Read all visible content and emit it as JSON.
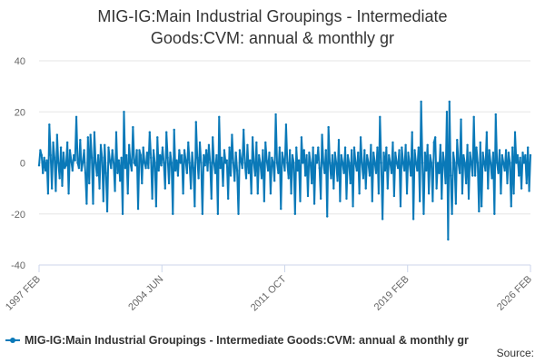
{
  "title_line1": "MIG-IG:Main Industrial Groupings - Intermediate",
  "title_line2": "Goods:CVM: annual & monthly gr",
  "source_label": "Source:",
  "colors": {
    "series": "#0a79b8",
    "grid": "#e6e6e6",
    "axis": "#ccd6eb"
  },
  "chart_data": {
    "type": "line",
    "title": "MIG-IG:Main Industrial Groupings - Intermediate Goods:CVM: annual & monthly gr",
    "xlabel": "",
    "ylabel": "",
    "ylim": [
      -40,
      40
    ],
    "yticks": [
      40,
      20,
      0,
      -20,
      -40
    ],
    "xlim": [
      "1997 FEB",
      "2026 FEB"
    ],
    "xticks": [
      "1997 FEB",
      "2004 JUN",
      "2011 OCT",
      "2019 FEB",
      "2026 FEB"
    ],
    "frequency": "monthly",
    "series": [
      {
        "name": "MIG-IG:Main Industrial Groupings - Intermediate Goods:CVM: annual & monthly gr",
        "start": "1997 FEB",
        "values": [
          -1,
          5,
          3,
          -4,
          2,
          -3,
          1,
          -12,
          15,
          3,
          -10,
          8,
          2,
          -11,
          11,
          0,
          -6,
          6,
          -9,
          4,
          -2,
          -1,
          8,
          -12,
          5,
          1,
          -3,
          3,
          1,
          18,
          0,
          -2,
          9,
          -3,
          0,
          5,
          -4,
          -16,
          10,
          -8,
          11,
          2,
          -16,
          12,
          0,
          -5,
          3,
          -10,
          7,
          2,
          -15,
          7,
          -4,
          -19,
          6,
          1,
          -2,
          5,
          0,
          -11,
          12,
          -4,
          1,
          -7,
          2,
          -20,
          20,
          -2,
          3,
          -12,
          7,
          0,
          -3,
          14,
          0,
          -1,
          5,
          -18,
          5,
          3,
          -8,
          6,
          0,
          -2,
          4,
          -2,
          12,
          2,
          -14,
          5,
          0,
          -17,
          10,
          -3,
          3,
          -1,
          6,
          0,
          -10,
          12,
          2,
          -8,
          4,
          0,
          -20,
          13,
          -3,
          1,
          -5,
          5,
          0,
          3,
          -12,
          5,
          1,
          -4,
          8,
          0,
          -10,
          4,
          -2,
          -17,
          16,
          2,
          -6,
          8,
          0,
          -20,
          3,
          -1,
          5,
          -3,
          7,
          0,
          -14,
          10,
          0,
          -4,
          3,
          -20,
          18,
          -2,
          2,
          -9,
          5,
          0,
          1,
          -14,
          6,
          -5,
          11,
          0,
          -7,
          4,
          -3,
          -20,
          5,
          1,
          -2,
          13,
          0,
          -6,
          7,
          -4,
          1,
          -12,
          10,
          0,
          -5,
          8,
          -12,
          3,
          0,
          -6,
          5,
          -15,
          8,
          1,
          -3,
          4,
          -12,
          2,
          0,
          -7,
          19,
          0,
          -4,
          6,
          -18,
          4,
          1,
          -3,
          15,
          0,
          -6,
          5,
          -12,
          3,
          0,
          -20,
          6,
          -3,
          1,
          -15,
          10,
          0,
          5,
          -5,
          3,
          -13,
          4,
          0,
          -8,
          6,
          -16,
          3,
          0,
          6,
          -2,
          -14,
          11,
          0,
          -4,
          5,
          -21,
          14,
          0,
          -6,
          3,
          -10,
          4,
          0,
          -7,
          9,
          -15,
          3,
          0,
          -4,
          6,
          -14,
          3,
          0,
          -8,
          5,
          -17,
          6,
          0,
          -3,
          4,
          -12,
          10,
          0,
          -6,
          5,
          -10,
          3,
          0,
          -5,
          7,
          -15,
          4,
          0,
          -4,
          6,
          -12,
          18,
          0,
          -22,
          4,
          -3,
          6,
          -10,
          3,
          0,
          -4,
          8,
          -13,
          4,
          0,
          -2,
          5,
          -17,
          6,
          0,
          -3,
          7,
          -12,
          4,
          0,
          -5,
          12,
          -22,
          5,
          0,
          -3,
          6,
          -15,
          24,
          0,
          -20,
          4,
          -3,
          7,
          -12,
          3,
          0,
          -15,
          8,
          10,
          -10,
          0,
          -4,
          7,
          -14,
          4,
          0,
          -8,
          20,
          -30,
          24,
          -5,
          -20,
          4,
          0,
          -16,
          9,
          0,
          -4,
          17,
          -12,
          3,
          0,
          -8,
          7,
          -14,
          4,
          0,
          -5,
          18,
          -5,
          6,
          0,
          -19,
          8,
          -17,
          4,
          0,
          -3,
          12,
          -10,
          5,
          0,
          -6,
          4,
          -20,
          19,
          0,
          -4,
          5,
          -12,
          3,
          0,
          -3,
          5,
          -8,
          4,
          0,
          -17,
          6,
          -12,
          12,
          0,
          3,
          -5,
          2,
          -10,
          4,
          0,
          3,
          -8,
          6,
          -11,
          3
        ]
      }
    ]
  }
}
